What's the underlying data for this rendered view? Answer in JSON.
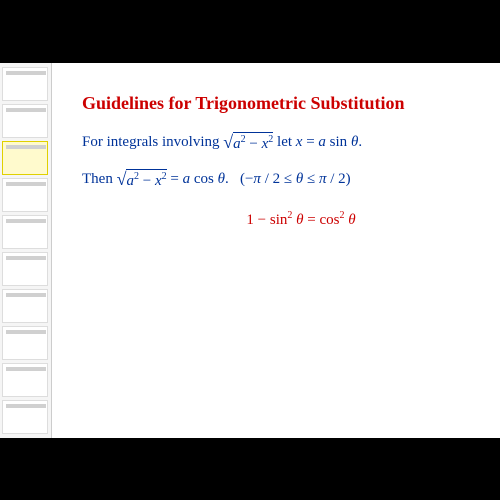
{
  "title": "Guidelines for Trigonometric Substitution",
  "line1_prefix": "For integrals involving ",
  "line1_sqrt": "a² − x²",
  "line1_suffix": " let x = a sin θ.",
  "line2_prefix": "Then ",
  "line2_sqrt": "a² − x²",
  "line2_mid": " = a cos θ.",
  "line2_range": "(−π / 2 ≤ θ ≤ π / 2)",
  "line3": "1 − sin² θ = cos² θ",
  "colors": {
    "title": "#cc0000",
    "body": "#003399",
    "identity": "#cc0000",
    "background": "#ffffff",
    "sidebar": "#f5f5f5"
  },
  "fontsize": {
    "title": 18,
    "body": 15
  }
}
